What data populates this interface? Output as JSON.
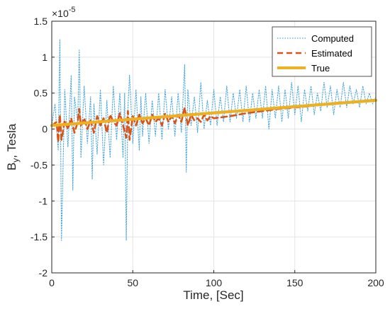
{
  "chart_data": {
    "type": "line",
    "xlabel": "Time, [Sec]",
    "ylabel_main": "B",
    "ylabel_sub": "y",
    "ylabel_rest": ", Tesla",
    "exponent_base": "×10",
    "exponent_power": "-5",
    "xlim": [
      0,
      200
    ],
    "ylim": [
      -2,
      1.5
    ],
    "xticks": [
      "0",
      "50",
      "100",
      "150",
      "200"
    ],
    "yticks": [
      "-2",
      "-1.5",
      "-1",
      "-0.5",
      "0",
      "0.5",
      "1",
      "1.5"
    ],
    "grid": true,
    "legend_position": "top-right",
    "series": [
      {
        "name": "Computed",
        "style": "dotted",
        "color": "#4DA8DA",
        "x": [
          0,
          2,
          4,
          5,
          6,
          8,
          10,
          12,
          13,
          14,
          16,
          17,
          18,
          20,
          22,
          24,
          25,
          26,
          28,
          30,
          32,
          34,
          36,
          38,
          40,
          42,
          44,
          45,
          46,
          47,
          48,
          50,
          52,
          54,
          55,
          56,
          58,
          60,
          62,
          64,
          66,
          68,
          70,
          72,
          74,
          76,
          78,
          80,
          82,
          83,
          84,
          86,
          88,
          90,
          92,
          94,
          96,
          98,
          100,
          102,
          104,
          106,
          108,
          110,
          112,
          114,
          116,
          118,
          120,
          122,
          124,
          126,
          128,
          130,
          132,
          134,
          136,
          138,
          140,
          142,
          144,
          146,
          148,
          150,
          152,
          154,
          156,
          158,
          160,
          162,
          164,
          166,
          168,
          170,
          172,
          174,
          176,
          178,
          180,
          182,
          184,
          186,
          188,
          190,
          192,
          194,
          196,
          198,
          200
        ],
        "values": [
          0.05,
          0.35,
          -0.3,
          1.25,
          -1.55,
          0.55,
          -0.25,
          0.75,
          -0.85,
          0.45,
          0.1,
          1.1,
          -0.4,
          0.6,
          -0.2,
          0.45,
          -0.7,
          0.35,
          -0.35,
          0.55,
          -0.5,
          0.4,
          -0.4,
          0.6,
          -0.15,
          0.5,
          -0.4,
          0.5,
          -1.55,
          0.3,
          0.75,
          -0.2,
          0.55,
          -0.3,
          0.45,
          -0.1,
          0.5,
          -0.2,
          0.4,
          -0.1,
          0.5,
          -0.15,
          0.55,
          0.0,
          0.45,
          -0.1,
          0.5,
          -0.05,
          0.9,
          -0.6,
          0.55,
          0.05,
          0.45,
          -0.05,
          0.65,
          0.0,
          0.4,
          0.05,
          0.55,
          0.05,
          0.45,
          0.1,
          0.6,
          0.1,
          0.5,
          0.15,
          0.55,
          0.1,
          0.6,
          0.1,
          0.5,
          0.15,
          0.55,
          0.15,
          0.6,
          0.0,
          0.55,
          0.15,
          0.6,
          0.1,
          0.55,
          0.15,
          0.65,
          0.2,
          0.6,
          0.1,
          0.55,
          0.25,
          0.6,
          0.2,
          0.5,
          0.25,
          0.65,
          0.3,
          0.6,
          0.2,
          0.55,
          0.3,
          0.65,
          0.3,
          0.6,
          0.35,
          0.55,
          0.3,
          0.6,
          0.35,
          0.5,
          0.35,
          0.45
        ]
      },
      {
        "name": "Estimated",
        "style": "dashed",
        "color": "#D95319",
        "x": [
          0,
          3,
          4,
          5,
          6,
          8,
          10,
          12,
          14,
          16,
          17,
          18,
          20,
          22,
          24,
          26,
          28,
          30,
          32,
          34,
          36,
          38,
          40,
          42,
          44,
          46,
          47,
          48,
          50,
          52,
          54,
          56,
          58,
          60,
          62,
          64,
          66,
          68,
          70,
          72,
          74,
          76,
          78,
          80,
          82,
          84,
          86,
          88,
          90,
          92,
          94,
          96,
          98,
          100,
          110,
          120,
          130,
          140,
          150,
          160,
          170,
          180,
          190,
          200
        ],
        "values": [
          0.05,
          0.1,
          -0.18,
          0.2,
          -0.15,
          0.12,
          0.0,
          0.15,
          -0.05,
          0.1,
          0.28,
          0.05,
          0.15,
          0.0,
          0.12,
          -0.05,
          0.18,
          0.05,
          0.15,
          -0.05,
          0.2,
          0.1,
          0.05,
          0.22,
          0.05,
          -0.12,
          0.25,
          -0.15,
          0.18,
          0.05,
          0.2,
          0.08,
          0.15,
          0.05,
          0.2,
          0.1,
          0.15,
          0.05,
          0.22,
          0.1,
          0.18,
          0.08,
          0.2,
          0.1,
          0.3,
          0.05,
          0.2,
          0.12,
          0.15,
          0.1,
          0.2,
          0.12,
          0.18,
          0.15,
          0.18,
          0.22,
          0.25,
          0.28,
          0.3,
          0.32,
          0.35,
          0.36,
          0.38,
          0.4
        ]
      },
      {
        "name": "True",
        "style": "solid",
        "color": "#EDB120",
        "x": [
          0,
          200
        ],
        "values": [
          0.05,
          0.4
        ]
      }
    ]
  }
}
